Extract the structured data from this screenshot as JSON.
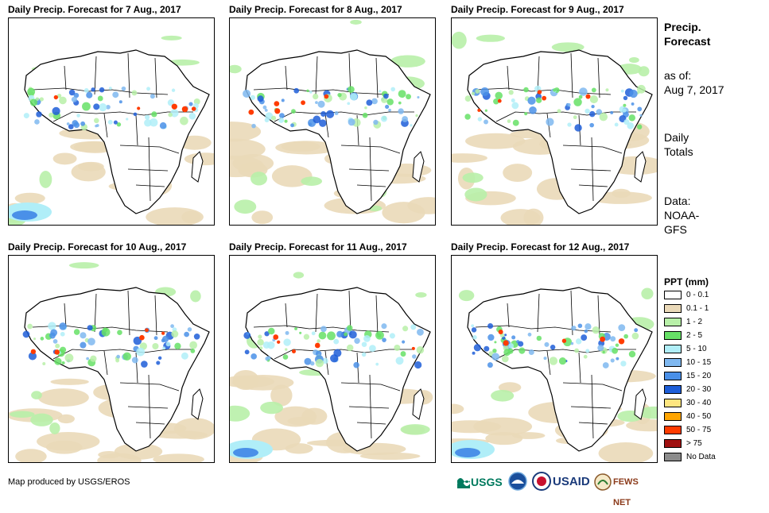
{
  "panels": [
    {
      "title": "Daily Precip. Forecast for 7 Aug., 2017"
    },
    {
      "title": "Daily Precip. Forecast for 8 Aug., 2017"
    },
    {
      "title": "Daily Precip. Forecast for 9 Aug., 2017"
    },
    {
      "title": "Daily Precip. Forecast for 10 Aug., 2017"
    },
    {
      "title": "Daily Precip. Forecast for 11 Aug., 2017"
    },
    {
      "title": "Daily Precip. Forecast for 12 Aug., 2017"
    }
  ],
  "side": {
    "title_line1": "Precip.",
    "title_line2": "Forecast",
    "asof_label": "as of:",
    "asof_date": "Aug 7, 2017",
    "totals_line1": "Daily",
    "totals_line2": "Totals",
    "data_line1": "Data:",
    "data_line2": "NOAA-",
    "data_line3": "GFS"
  },
  "legend": {
    "title": "PPT (mm)",
    "items": [
      {
        "label": "0 - 0.1",
        "color": "#ffffff"
      },
      {
        "label": "0.1 - 1",
        "color": "#ead9b8"
      },
      {
        "label": "1 - 2",
        "color": "#b8f0a8"
      },
      {
        "label": "2 - 5",
        "color": "#66e066"
      },
      {
        "label": "5 - 10",
        "color": "#b0eef8"
      },
      {
        "label": "10 - 15",
        "color": "#7fb8f0"
      },
      {
        "label": "15 - 20",
        "color": "#4a90e8"
      },
      {
        "label": "20 - 30",
        "color": "#1e5ed8"
      },
      {
        "label": "30 - 40",
        "color": "#ffe680"
      },
      {
        "label": "40 - 50",
        "color": "#ffa500"
      },
      {
        "label": "50 - 75",
        "color": "#ff3c00"
      },
      {
        "label": "> 75",
        "color": "#a01010"
      },
      {
        "label": "No Data",
        "color": "#8c8c8c"
      }
    ]
  },
  "footer": {
    "credit": "Map produced by USGS/EROS"
  },
  "logos": {
    "usgs": "USGS",
    "usaid": "USAID",
    "fewsnet": "FEWS NET"
  }
}
